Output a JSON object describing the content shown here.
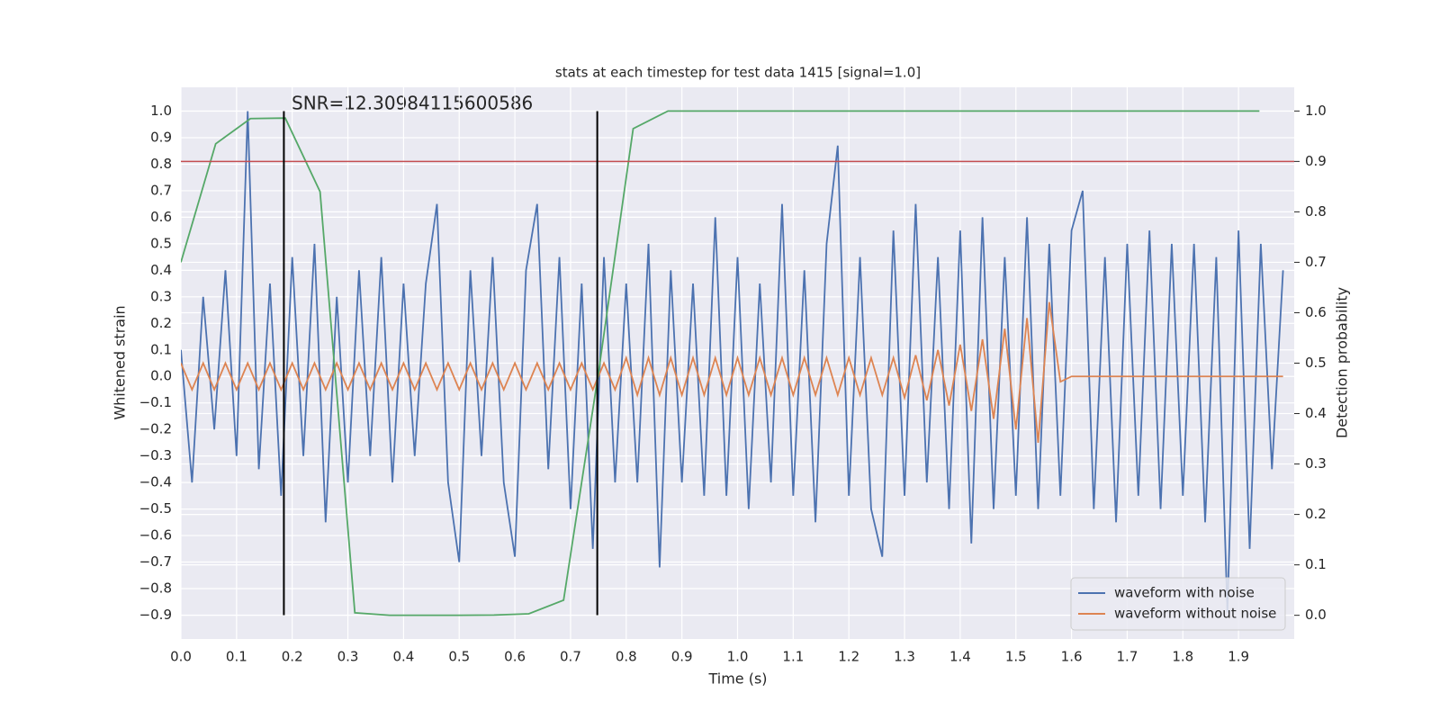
{
  "chart_data": {
    "type": "line",
    "title": "stats at each timestep for test data 1415 [signal=1.0]",
    "annotation": "SNR=12.30984115600586",
    "xlabel": "Time (s)",
    "ylabel": "Whitened strain",
    "y2label": "Detection probability",
    "xlim": [
      0,
      2.0
    ],
    "ylim": [
      -0.99,
      1.09
    ],
    "y2lim": [
      -0.047,
      1.047
    ],
    "xticks": [
      {
        "value": 0,
        "label": "0.0"
      },
      {
        "value": 0.1,
        "label": "0.1"
      },
      {
        "value": 0.2,
        "label": "0.2"
      },
      {
        "value": 0.3,
        "label": "0.3"
      },
      {
        "value": 0.4,
        "label": "0.4"
      },
      {
        "value": 0.5,
        "label": "0.5"
      },
      {
        "value": 0.6,
        "label": "0.6"
      },
      {
        "value": 0.7,
        "label": "0.7"
      },
      {
        "value": 0.8,
        "label": "0.8"
      },
      {
        "value": 0.9,
        "label": "0.9"
      },
      {
        "value": 1,
        "label": "1.0"
      },
      {
        "value": 1.1,
        "label": "1.1"
      },
      {
        "value": 1.2,
        "label": "1.2"
      },
      {
        "value": 1.3,
        "label": "1.3"
      },
      {
        "value": 1.4,
        "label": "1.4"
      },
      {
        "value": 1.5,
        "label": "1.5"
      },
      {
        "value": 1.6,
        "label": "1.6"
      },
      {
        "value": 1.7,
        "label": "1.7"
      },
      {
        "value": 1.8,
        "label": "1.8"
      },
      {
        "value": 1.9,
        "label": "1.9"
      }
    ],
    "yticks": [
      {
        "value": -0.9,
        "label": "−0.9"
      },
      {
        "value": -0.8,
        "label": "−0.8"
      },
      {
        "value": -0.7,
        "label": "−0.7"
      },
      {
        "value": -0.6,
        "label": "−0.6"
      },
      {
        "value": -0.5,
        "label": "−0.5"
      },
      {
        "value": -0.4,
        "label": "−0.4"
      },
      {
        "value": -0.3,
        "label": "−0.3"
      },
      {
        "value": -0.2,
        "label": "−0.2"
      },
      {
        "value": -0.1,
        "label": "−0.1"
      },
      {
        "value": 0,
        "label": "0.0"
      },
      {
        "value": 0.1,
        "label": "0.1"
      },
      {
        "value": 0.2,
        "label": "0.2"
      },
      {
        "value": 0.3,
        "label": "0.3"
      },
      {
        "value": 0.4,
        "label": "0.4"
      },
      {
        "value": 0.5,
        "label": "0.5"
      },
      {
        "value": 0.6,
        "label": "0.6"
      },
      {
        "value": 0.7,
        "label": "0.7"
      },
      {
        "value": 0.8,
        "label": "0.8"
      },
      {
        "value": 0.9,
        "label": "0.9"
      },
      {
        "value": 1,
        "label": "1.0"
      }
    ],
    "y2ticks": [
      {
        "value": 0,
        "label": "0.0"
      },
      {
        "value": 0.1,
        "label": "0.1"
      },
      {
        "value": 0.2,
        "label": "0.2"
      },
      {
        "value": 0.3,
        "label": "0.3"
      },
      {
        "value": 0.4,
        "label": "0.4"
      },
      {
        "value": 0.5,
        "label": "0.5"
      },
      {
        "value": 0.6,
        "label": "0.6"
      },
      {
        "value": 0.7,
        "label": "0.7"
      },
      {
        "value": 0.8,
        "label": "0.8"
      },
      {
        "value": 0.9,
        "label": "0.9"
      },
      {
        "value": 1,
        "label": "1.0"
      }
    ],
    "grid": true,
    "legend": "lower right",
    "threshold": {
      "value": 0.9,
      "axis": "y2",
      "color": "#c44e52"
    },
    "vlines": {
      "x": [
        0.185,
        0.748
      ],
      "ymin": -0.9,
      "ymax": 1.0,
      "color": "#000000"
    },
    "x": [
      0,
      0.02,
      0.04,
      0.06,
      0.08,
      0.1,
      0.12,
      0.14,
      0.16,
      0.18,
      0.2,
      0.22,
      0.24,
      0.26,
      0.28,
      0.3,
      0.32,
      0.34,
      0.36,
      0.38,
      0.4,
      0.42,
      0.44,
      0.46,
      0.48,
      0.5,
      0.52,
      0.54,
      0.56,
      0.58,
      0.6,
      0.62,
      0.64,
      0.66,
      0.68,
      0.7,
      0.72,
      0.74,
      0.76,
      0.78,
      0.8,
      0.82,
      0.84,
      0.86,
      0.88,
      0.9,
      0.92,
      0.94,
      0.96,
      0.98,
      1,
      1.02,
      1.04,
      1.06,
      1.08,
      1.1,
      1.12,
      1.14,
      1.16,
      1.18,
      1.2,
      1.22,
      1.24,
      1.26,
      1.28,
      1.3,
      1.32,
      1.34,
      1.36,
      1.38,
      1.4,
      1.42,
      1.44,
      1.46,
      1.48,
      1.5,
      1.52,
      1.54,
      1.56,
      1.58,
      1.6,
      1.62,
      1.64,
      1.66,
      1.68,
      1.7,
      1.72,
      1.74,
      1.76,
      1.78,
      1.8,
      1.82,
      1.84,
      1.86,
      1.88,
      1.9,
      1.92,
      1.94,
      1.96,
      1.98
    ],
    "series": [
      {
        "name": "waveform with noise",
        "color": "#4c72b0",
        "axis": "y",
        "values": [
          0.1,
          -0.4,
          0.3,
          -0.2,
          0.4,
          -0.3,
          1.0,
          -0.35,
          0.35,
          -0.45,
          0.45,
          -0.3,
          0.5,
          -0.55,
          0.3,
          -0.4,
          0.4,
          -0.3,
          0.45,
          -0.4,
          0.35,
          -0.3,
          0.35,
          0.65,
          -0.4,
          -0.7,
          0.4,
          -0.3,
          0.45,
          -0.4,
          -0.68,
          0.4,
          0.65,
          -0.35,
          0.45,
          -0.5,
          0.35,
          -0.65,
          0.45,
          -0.4,
          0.35,
          -0.4,
          0.5,
          -0.72,
          0.4,
          -0.4,
          0.35,
          -0.45,
          0.6,
          -0.45,
          0.45,
          -0.5,
          0.35,
          -0.4,
          0.65,
          -0.45,
          0.4,
          -0.55,
          0.5,
          0.87,
          -0.45,
          0.45,
          -0.5,
          -0.68,
          0.55,
          -0.45,
          0.65,
          -0.4,
          0.45,
          -0.5,
          0.55,
          -0.63,
          0.6,
          -0.5,
          0.45,
          -0.45,
          0.6,
          -0.5,
          0.5,
          -0.45,
          0.55,
          0.7,
          -0.5,
          0.45,
          -0.55,
          0.5,
          -0.45,
          0.55,
          -0.5,
          0.5,
          -0.45,
          0.5,
          -0.55,
          0.45,
          -0.89,
          0.55,
          -0.65,
          0.5,
          -0.35,
          0.4
        ]
      },
      {
        "name": "waveform without noise",
        "color": "#dd8452",
        "axis": "y",
        "values": [
          0.05,
          -0.05,
          0.05,
          -0.05,
          0.05,
          -0.05,
          0.05,
          -0.05,
          0.05,
          -0.05,
          0.05,
          -0.05,
          0.05,
          -0.05,
          0.05,
          -0.05,
          0.05,
          -0.05,
          0.05,
          -0.05,
          0.05,
          -0.05,
          0.05,
          -0.05,
          0.05,
          -0.05,
          0.05,
          -0.05,
          0.05,
          -0.05,
          0.05,
          -0.05,
          0.05,
          -0.05,
          0.05,
          -0.05,
          0.05,
          -0.05,
          0.05,
          -0.05,
          0.07,
          -0.07,
          0.07,
          -0.07,
          0.07,
          -0.07,
          0.07,
          -0.07,
          0.07,
          -0.07,
          0.07,
          -0.07,
          0.07,
          -0.07,
          0.07,
          -0.07,
          0.07,
          -0.07,
          0.07,
          -0.07,
          0.07,
          -0.07,
          0.07,
          -0.07,
          0.07,
          -0.08,
          0.08,
          -0.09,
          0.1,
          -0.11,
          0.12,
          -0.13,
          0.14,
          -0.16,
          0.18,
          -0.2,
          0.22,
          -0.25,
          0.28,
          -0.02,
          0,
          0,
          0,
          0,
          0,
          0,
          0,
          0,
          0,
          0,
          0,
          0,
          0,
          0,
          0,
          0,
          0,
          0,
          0,
          0
        ]
      },
      {
        "color": "#55a868",
        "axis": "y2",
        "x": [
          0,
          0.0625,
          0.125,
          0.1875,
          0.25,
          0.3125,
          0.375,
          0.4375,
          0.5,
          0.5625,
          0.625,
          0.6875,
          0.75,
          0.8125,
          0.875,
          0.9375,
          1,
          1.0625,
          1.125,
          1.1875,
          1.25,
          1.3125,
          1.375,
          1.4375,
          1.5,
          1.5625,
          1.625,
          1.6875,
          1.75,
          1.8125,
          1.875,
          1.9375
        ],
        "values": [
          0.7,
          0.935,
          0.985,
          0.986,
          0.84,
          0.005,
          0.0,
          0.0,
          0.0,
          0.0005,
          0.003,
          0.03,
          0.48,
          0.965,
          1.0,
          1.0,
          1.0,
          1.0,
          1.0,
          1.0,
          1.0,
          1.0,
          1.0,
          1.0,
          1.0,
          1.0,
          1.0,
          1.0,
          1.0,
          1.0,
          1.0,
          1.0
        ]
      }
    ]
  }
}
